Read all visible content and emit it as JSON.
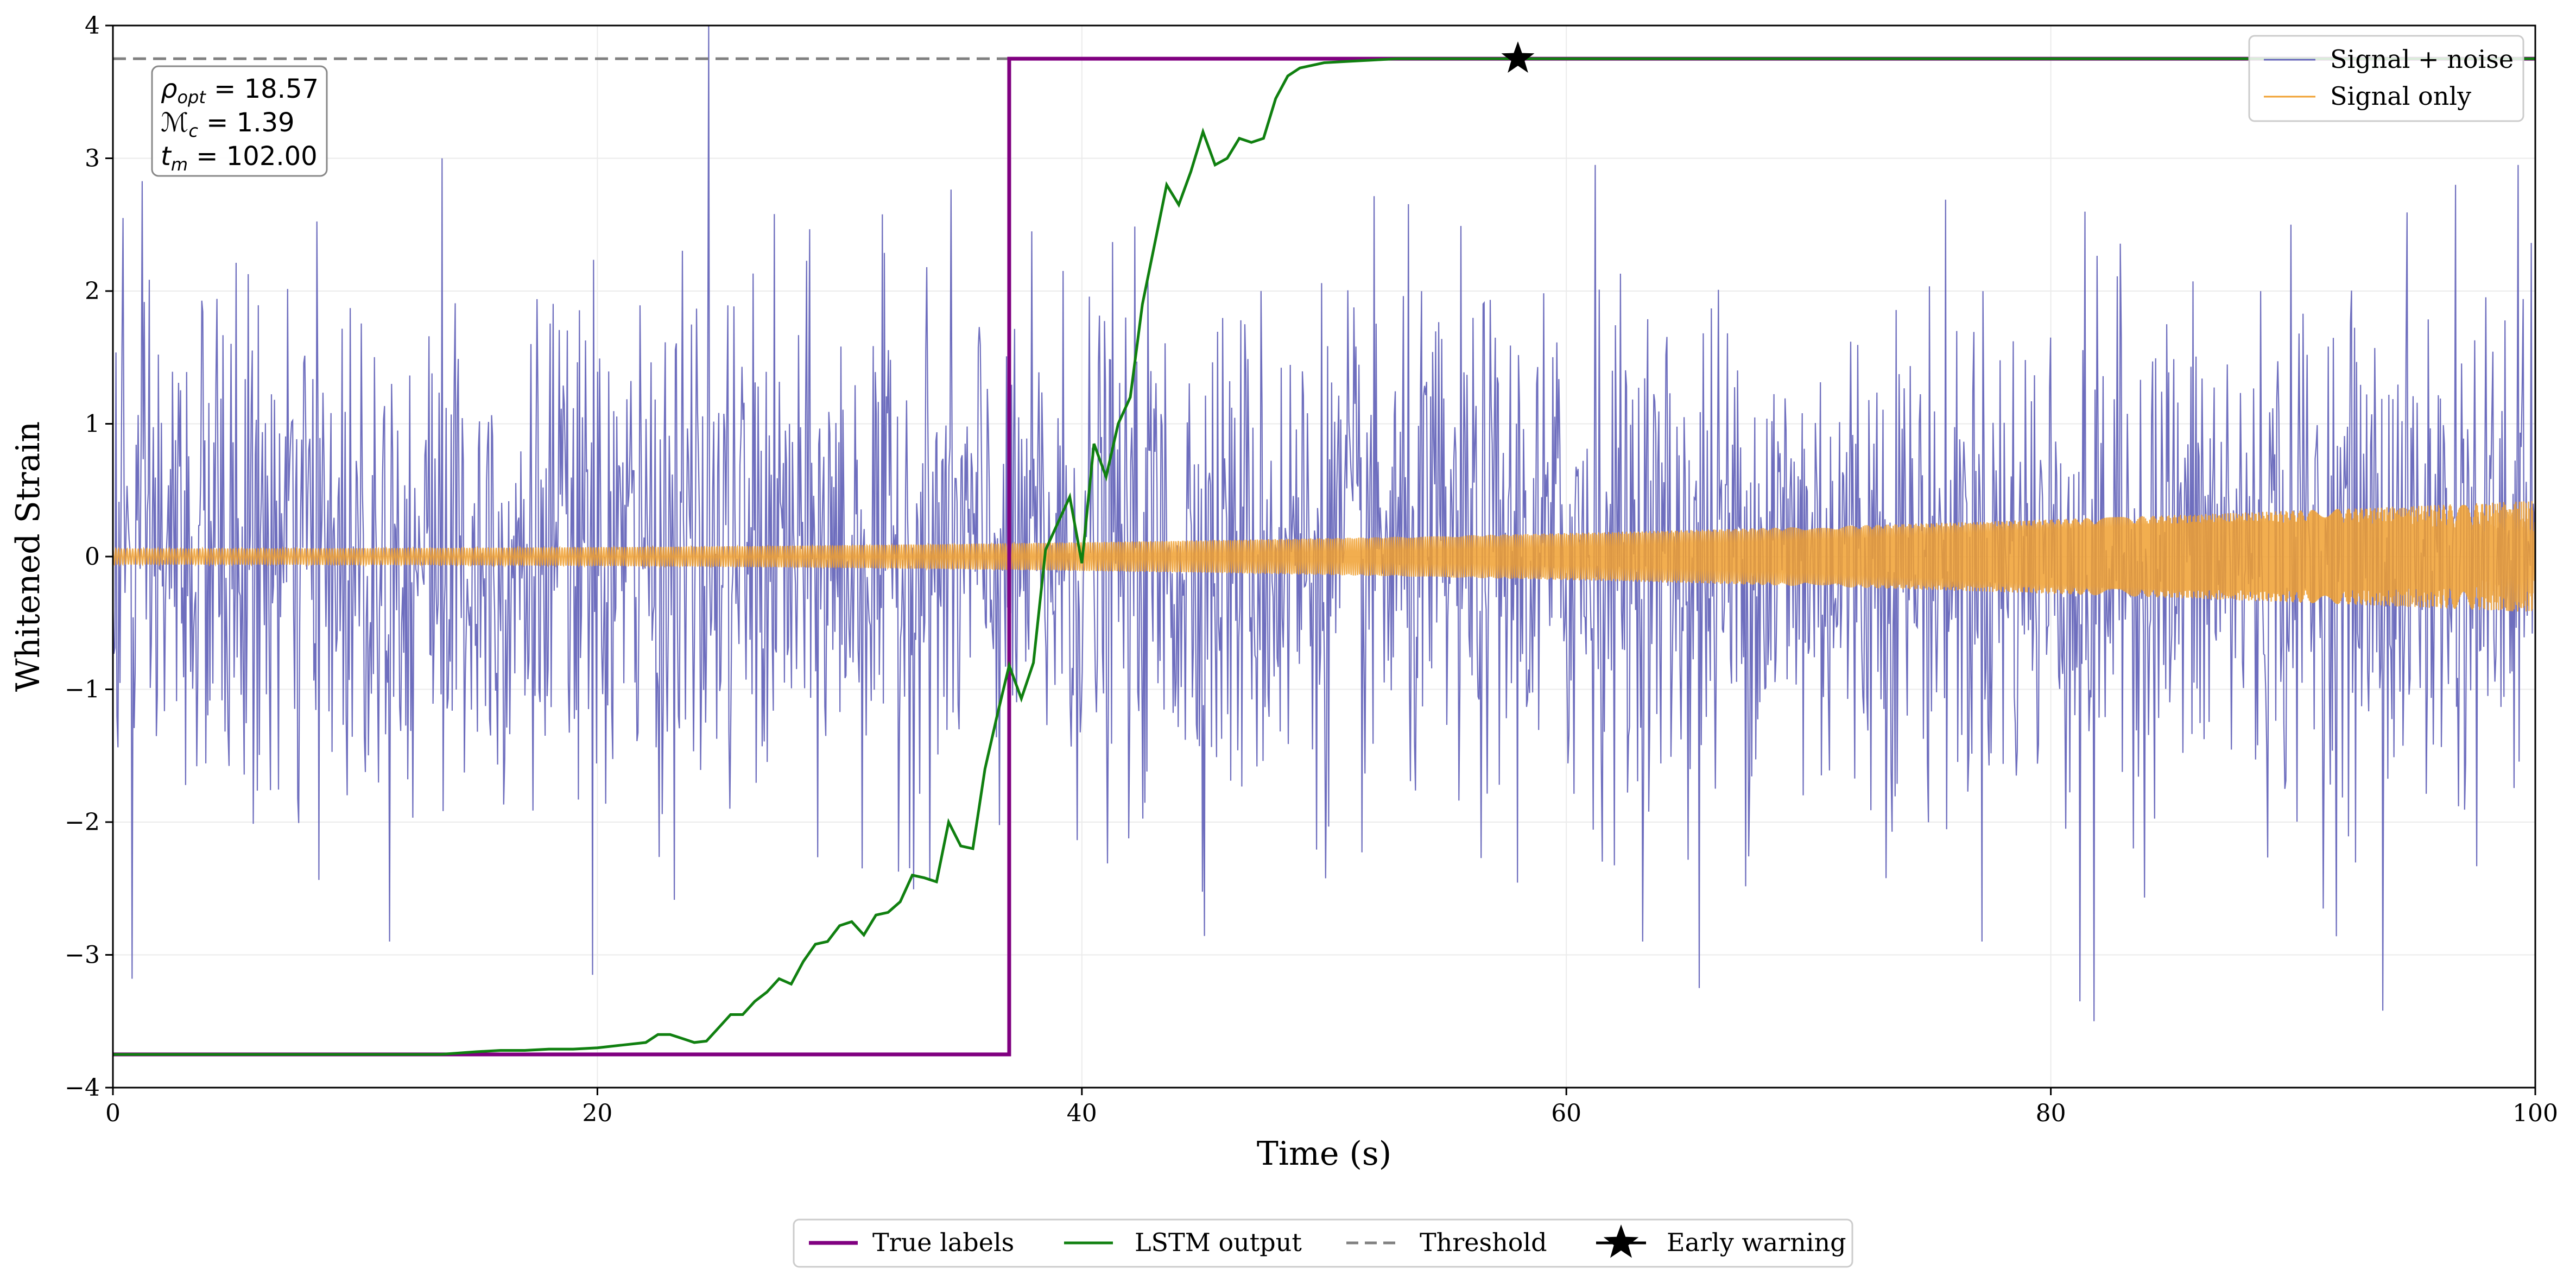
{
  "chart_data": {
    "type": "line",
    "xlabel": "Time (s)",
    "ylabel": "Whitened Strain",
    "xlim": [
      0,
      100
    ],
    "ylim": [
      -4,
      4
    ],
    "x_ticks": [
      0,
      20,
      40,
      60,
      80,
      100
    ],
    "x_tick_labels": [
      "0",
      "20",
      "40",
      "60",
      "80",
      "100"
    ],
    "y_ticks": [
      -4,
      -3,
      -2,
      -1,
      0,
      1,
      2,
      3,
      4
    ],
    "y_tick_labels": [
      "−4",
      "−3",
      "−2",
      "−1",
      "0",
      "1",
      "2",
      "3",
      "4"
    ],
    "grid": true,
    "colors": {
      "signal_noise": "#6666bb",
      "signal_only": "#f0a030",
      "true_labels": "#800080",
      "lstm": "#108010",
      "threshold": "#808080",
      "star": "#000000"
    },
    "threshold_value": 3.75,
    "true_labels": {
      "low": -3.75,
      "high": 3.75,
      "step_time": 37.0
    },
    "early_warning": {
      "x": 58.0,
      "y": 3.75
    },
    "lstm_output": {
      "x": [
        0,
        5,
        10,
        13.5,
        15,
        16,
        17,
        18,
        19,
        20,
        21,
        22,
        22.5,
        23,
        23.5,
        24,
        24.5,
        25,
        25.5,
        26,
        26.5,
        27,
        27.5,
        28,
        28.5,
        29,
        29.5,
        30,
        30.5,
        31,
        31.5,
        32,
        32.5,
        33,
        33.5,
        34,
        34.5,
        35,
        35.5,
        36,
        36.5,
        37,
        37.5,
        38,
        38.5,
        39,
        39.5,
        40,
        40.5,
        41,
        41.5,
        42,
        42.5,
        43,
        43.5,
        44,
        44.5,
        45,
        45.5,
        46,
        46.5,
        47,
        47.5,
        48,
        48.5,
        49,
        50,
        51,
        52,
        53,
        54,
        55,
        56,
        57,
        58,
        60,
        70,
        80,
        90,
        100
      ],
      "y": [
        -3.75,
        -3.75,
        -3.75,
        -3.75,
        -3.73,
        -3.72,
        -3.72,
        -3.71,
        -3.71,
        -3.7,
        -3.68,
        -3.66,
        -3.6,
        -3.6,
        -3.63,
        -3.66,
        -3.65,
        -3.55,
        -3.45,
        -3.45,
        -3.35,
        -3.28,
        -3.18,
        -3.22,
        -3.05,
        -2.92,
        -2.9,
        -2.78,
        -2.75,
        -2.85,
        -2.7,
        -2.68,
        -2.6,
        -2.4,
        -2.42,
        -2.45,
        -2.0,
        -2.18,
        -2.2,
        -1.6,
        -1.2,
        -0.82,
        -1.07,
        -0.8,
        0.05,
        0.25,
        0.45,
        -0.05,
        0.85,
        0.6,
        1.0,
        1.2,
        1.9,
        2.35,
        2.8,
        2.65,
        2.9,
        3.2,
        2.95,
        3.0,
        3.15,
        3.12,
        3.15,
        3.45,
        3.62,
        3.68,
        3.72,
        3.73,
        3.74,
        3.75,
        3.75,
        3.75,
        3.75,
        3.75,
        3.75,
        3.75,
        3.75,
        3.75,
        3.75,
        3.75
      ]
    },
    "signal_noise": {
      "n_points": 2400,
      "sigma": 0.95,
      "spikes": [
        {
          "x": 0.4,
          "y": 2.55
        },
        {
          "x": 0.8,
          "y": -3.18
        },
        {
          "x": 13.6,
          "y": 3.0
        },
        {
          "x": 19.8,
          "y": -3.15
        },
        {
          "x": 24.6,
          "y": 4.0
        },
        {
          "x": 65.5,
          "y": -3.25
        },
        {
          "x": 81.2,
          "y": -3.35
        },
        {
          "x": 81.8,
          "y": -3.5
        },
        {
          "x": 96.7,
          "y": 2.8
        },
        {
          "x": 93.7,
          "y": -3.42
        },
        {
          "x": 99.3,
          "y": 2.95
        },
        {
          "x": 61.2,
          "y": 2.95
        }
      ]
    },
    "signal_only": {
      "amp_start": 0.06,
      "amp_end": 0.42
    },
    "legend_upper": {
      "position": "top-right",
      "entries": [
        {
          "label": "Signal + noise",
          "color": "#6666bb"
        },
        {
          "label": "Signal only",
          "color": "#f0a030"
        }
      ]
    },
    "legend_lower": {
      "position": "bottom-center",
      "entries": [
        {
          "label": "True labels",
          "color": "#800080",
          "style": "solid"
        },
        {
          "label": "LSTM output",
          "color": "#108010",
          "style": "solid"
        },
        {
          "label": "Threshold",
          "color": "#808080",
          "style": "dashed"
        },
        {
          "label": "Early warning",
          "color": "#000000",
          "style": "star"
        }
      ]
    }
  }
}
